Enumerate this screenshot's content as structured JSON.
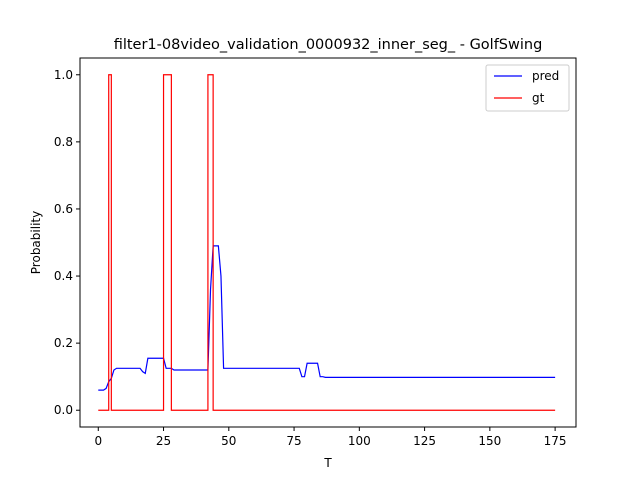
{
  "chart_data": {
    "type": "line",
    "title": "filter1-08video_validation_0000932_inner_seg_ - GolfSwing",
    "xlabel": "T",
    "ylabel": "Probability",
    "xlim": [
      -7,
      183
    ],
    "ylim": [
      -0.05,
      1.05
    ],
    "xticks": [
      0,
      25,
      50,
      75,
      100,
      125,
      150,
      175
    ],
    "yticks": [
      0.0,
      0.2,
      0.4,
      0.6,
      0.8,
      1.0
    ],
    "xtick_labels": [
      "0",
      "25",
      "50",
      "75",
      "100",
      "125",
      "150",
      "175"
    ],
    "ytick_labels": [
      "0.0",
      "0.2",
      "0.4",
      "0.6",
      "0.8",
      "1.0"
    ],
    "grid": false,
    "legend_position": "top-right",
    "series": [
      {
        "name": "pred",
        "color": "#0000ff",
        "x": [
          0,
          2,
          3,
          4,
          5,
          6,
          7,
          8,
          9,
          10,
          11,
          12,
          13,
          14,
          15,
          16,
          17,
          18,
          19,
          20,
          21,
          22,
          23,
          24,
          25,
          26,
          27,
          28,
          29,
          30,
          35,
          40,
          42,
          43,
          44,
          45,
          46,
          47,
          48,
          50,
          55,
          60,
          65,
          70,
          75,
          76,
          77,
          78,
          79,
          80,
          81,
          82,
          83,
          84,
          85,
          86,
          87,
          88,
          90,
          100,
          120,
          140,
          160,
          175
        ],
        "y": [
          0.06,
          0.06,
          0.065,
          0.085,
          0.095,
          0.12,
          0.125,
          0.125,
          0.125,
          0.125,
          0.125,
          0.125,
          0.125,
          0.125,
          0.125,
          0.125,
          0.115,
          0.11,
          0.155,
          0.155,
          0.155,
          0.155,
          0.155,
          0.155,
          0.155,
          0.125,
          0.125,
          0.125,
          0.12,
          0.12,
          0.12,
          0.12,
          0.12,
          0.36,
          0.49,
          0.49,
          0.49,
          0.4,
          0.125,
          0.125,
          0.125,
          0.125,
          0.125,
          0.125,
          0.125,
          0.125,
          0.125,
          0.1,
          0.1,
          0.14,
          0.14,
          0.14,
          0.14,
          0.14,
          0.1,
          0.1,
          0.098,
          0.098,
          0.098,
          0.098,
          0.098,
          0.098,
          0.098,
          0.098
        ]
      },
      {
        "name": "gt",
        "color": "#ff0000",
        "x": [
          0,
          4,
          4,
          5,
          5,
          25,
          25,
          28,
          28,
          42,
          42,
          44,
          44,
          175
        ],
        "y": [
          0,
          0,
          1,
          1,
          0,
          0,
          1,
          1,
          0,
          0,
          1,
          1,
          0,
          0
        ]
      }
    ]
  }
}
